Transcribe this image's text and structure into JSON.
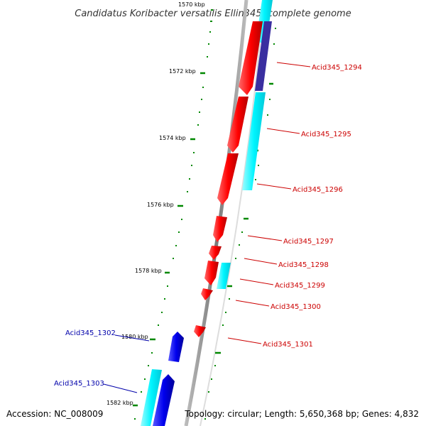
{
  "title": "Candidatus Koribacter versatilis Ellin345, complete genome",
  "accession": "Accession: NC_008009",
  "summary": "Topology: circular; Length: 5,650,368 bp; Genes: 4,832",
  "kbp_labels": [
    "1570 kbp",
    "1572 kbp",
    "1574 kbp",
    "1576 kbp",
    "1578 kbp",
    "1580 kbp",
    "1582 kbp"
  ],
  "gene_labels": [
    {
      "text": "Acid345_1294",
      "color": "#cc0000"
    },
    {
      "text": "Acid345_1295",
      "color": "#cc0000"
    },
    {
      "text": "Acid345_1296",
      "color": "#cc0000"
    },
    {
      "text": "Acid345_1297",
      "color": "#cc0000"
    },
    {
      "text": "Acid345_1298",
      "color": "#cc0000"
    },
    {
      "text": "Acid345_1299",
      "color": "#cc0000"
    },
    {
      "text": "Acid345_1300",
      "color": "#cc0000"
    },
    {
      "text": "Acid345_1301",
      "color": "#cc0000"
    },
    {
      "text": "Acid345_1302",
      "color": "#0000aa"
    },
    {
      "text": "Acid345_1303",
      "color": "#0000aa"
    }
  ],
  "colors": {
    "forward_gene": "#ff0000",
    "reverse_gene": "#0000ee",
    "cds_track": "#00ffff",
    "purple_segment": "#3a2fa0",
    "backbone": "#888888",
    "tick": "#008800"
  }
}
